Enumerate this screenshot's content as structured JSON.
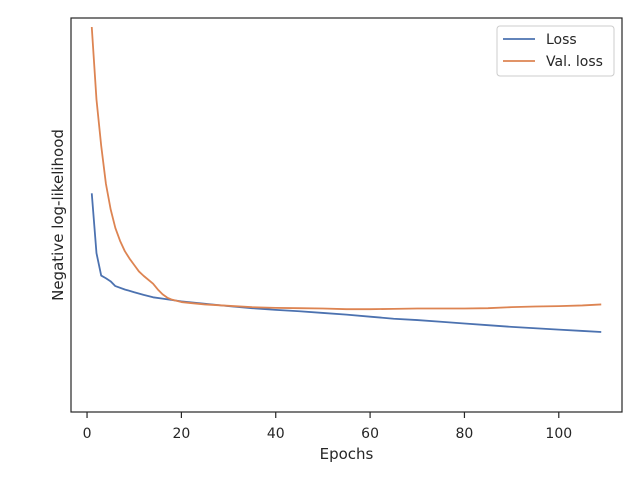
{
  "chart_data": {
    "type": "line",
    "title": "",
    "xlabel": "Epochs",
    "ylabel": "Negative log-likelihood",
    "xlim": [
      -3.4,
      113.4
    ],
    "ylim": [
      0,
      1
    ],
    "xticks": [
      "0",
      "20",
      "40",
      "60",
      "80",
      "100"
    ],
    "y_tick_labels_shown": false,
    "grid": false,
    "legend_position": "top-right",
    "series": [
      {
        "name": "Loss",
        "color": "#4c72b0",
        "x": [
          1,
          2,
          3,
          4,
          5,
          6,
          8,
          10,
          12,
          14,
          16,
          18,
          20,
          25,
          30,
          35,
          40,
          45,
          50,
          55,
          60,
          65,
          70,
          75,
          80,
          85,
          90,
          95,
          100,
          105,
          109
        ],
        "y": [
          0.511,
          0.335,
          0.269,
          0.261,
          0.252,
          0.238,
          0.228,
          0.22,
          0.212,
          0.205,
          0.201,
          0.197,
          0.193,
          0.186,
          0.179,
          0.173,
          0.168,
          0.164,
          0.159,
          0.154,
          0.148,
          0.142,
          0.138,
          0.133,
          0.128,
          0.123,
          0.118,
          0.114,
          0.11,
          0.106,
          0.103
        ]
      },
      {
        "name": "Val. loss",
        "color": "#dd8452",
        "x": [
          1,
          2,
          3,
          4,
          5,
          6,
          7,
          8,
          9,
          10,
          11,
          12,
          14,
          15,
          16,
          17,
          18,
          20,
          22,
          25,
          30,
          35,
          40,
          45,
          50,
          55,
          60,
          65,
          70,
          75,
          80,
          85,
          90,
          95,
          100,
          105,
          109
        ],
        "y": [
          1.0,
          0.787,
          0.651,
          0.539,
          0.464,
          0.409,
          0.371,
          0.341,
          0.319,
          0.3,
          0.281,
          0.268,
          0.245,
          0.228,
          0.214,
          0.204,
          0.198,
          0.191,
          0.188,
          0.184,
          0.18,
          0.176,
          0.174,
          0.173,
          0.172,
          0.17,
          0.17,
          0.171,
          0.172,
          0.172,
          0.172,
          0.173,
          0.176,
          0.178,
          0.179,
          0.181,
          0.184
        ]
      }
    ]
  }
}
